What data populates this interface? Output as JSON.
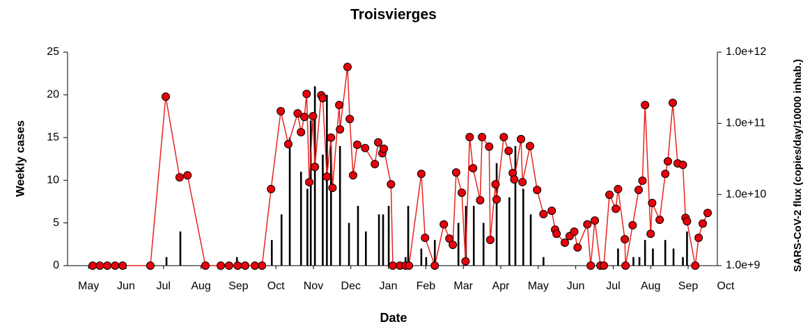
{
  "chart_data": {
    "type": "combo",
    "title": "Troisvierges",
    "x_label": "Date",
    "y_label": "Weekly cases",
    "y2_label": "SARS-CoV-2 flux (copies/day/10000 inhab.)",
    "xlim": [
      -0.56,
      16.78
    ],
    "xticks": [
      {
        "value": 0,
        "label": "May"
      },
      {
        "value": 1,
        "label": "Jun"
      },
      {
        "value": 2,
        "label": "Jul"
      },
      {
        "value": 3,
        "label": "Aug"
      },
      {
        "value": 4,
        "label": "Sep"
      },
      {
        "value": 5,
        "label": "Oct"
      },
      {
        "value": 6,
        "label": "Nov"
      },
      {
        "value": 7,
        "label": "Dec"
      },
      {
        "value": 8,
        "label": "Jan"
      },
      {
        "value": 9,
        "label": "Feb"
      },
      {
        "value": 10,
        "label": "Mar"
      },
      {
        "value": 11,
        "label": "Apr"
      },
      {
        "value": 12,
        "label": "May"
      },
      {
        "value": 13,
        "label": "Jun"
      },
      {
        "value": 14,
        "label": "Jul"
      },
      {
        "value": 15,
        "label": "Aug"
      },
      {
        "value": 16,
        "label": "Sep"
      },
      {
        "value": 17,
        "label": "Oct"
      }
    ],
    "ylim": [
      0,
      25
    ],
    "yticks": [
      0,
      5,
      10,
      15,
      20,
      25
    ],
    "y2lim": [
      1000000000.0,
      1000000000000.0
    ],
    "y2log": true,
    "y2ticks": [
      {
        "value": 1000000000.0,
        "label": "1.0e+9"
      },
      {
        "value": 10000000000.0,
        "label": "1.0e+10"
      },
      {
        "value": 100000000000.0,
        "label": "1.0e+11"
      },
      {
        "value": 1000000000000.0,
        "label": "1.0e+12"
      }
    ],
    "series": [
      {
        "type": "bar",
        "color": "#000000",
        "x": [
          2.08,
          2.45,
          3.96,
          4.89,
          5.15,
          5.37,
          5.67,
          5.84,
          5.93,
          6.04,
          6.25,
          6.36,
          6.47,
          6.71,
          6.95,
          7.19,
          7.4,
          7.75,
          7.86,
          8.01,
          8.46,
          8.53,
          8.88,
          9.01,
          9.24,
          9.87,
          10.07,
          10.28,
          10.54,
          10.89,
          11.23,
          11.39,
          11.6,
          11.8,
          12.14,
          14.13,
          14.54,
          14.7,
          14.85,
          15.06,
          15.39,
          15.61,
          15.86,
          15.97
        ],
        "values": [
          1,
          4,
          1,
          3,
          6,
          15,
          11,
          9,
          17,
          21,
          13,
          20,
          14,
          14,
          5,
          7,
          4,
          6,
          6,
          7,
          1,
          7,
          2,
          1,
          3,
          5,
          7,
          7,
          5,
          12,
          8,
          14,
          9,
          6,
          1,
          2,
          1,
          1,
          3,
          2,
          3,
          2,
          1,
          4
        ]
      },
      {
        "type": "line",
        "axis": "y2",
        "color": "#e8231e",
        "marker_color": "#e8000b",
        "x": [
          0.11,
          0.3,
          0.5,
          0.71,
          0.91,
          1.65,
          2.06,
          2.43,
          2.64,
          3.12,
          3.53,
          3.75,
          3.98,
          4.18,
          4.44,
          4.63,
          4.87,
          5.13,
          5.33,
          5.58,
          5.67,
          5.76,
          5.82,
          5.89,
          5.99,
          6.04,
          6.21,
          6.25,
          6.36,
          6.47,
          6.51,
          6.69,
          6.71,
          6.91,
          6.97,
          7.06,
          7.17,
          7.38,
          7.64,
          7.73,
          7.84,
          7.88,
          8.07,
          8.12,
          8.31,
          8.46,
          8.55,
          8.88,
          8.98,
          9.24,
          9.48,
          9.63,
          9.72,
          9.81,
          9.96,
          10.06,
          10.17,
          10.26,
          10.45,
          10.5,
          10.69,
          10.72,
          10.86,
          10.89,
          11.08,
          11.21,
          11.32,
          11.36,
          11.54,
          11.58,
          11.78,
          11.97,
          12.14,
          12.36,
          12.45,
          12.49,
          12.71,
          12.84,
          12.96,
          13.05,
          13.31,
          13.4,
          13.51,
          13.66,
          13.75,
          13.9,
          14.07,
          14.13,
          14.31,
          14.33,
          14.52,
          14.68,
          14.78,
          14.85,
          15.0,
          15.04,
          15.24,
          15.39,
          15.46,
          15.59,
          15.72,
          15.86,
          15.93,
          15.97,
          16.19,
          16.28,
          16.39,
          16.52
        ],
        "values": [
          1000000000.0,
          1000000000.0,
          1000000000.0,
          1000000000.0,
          1000000000.0,
          1000000000.0,
          237000000000.0,
          17400000000.0,
          18600000000.0,
          1000000000.0,
          1000000000.0,
          1000000000.0,
          1000000000.0,
          1000000000.0,
          1000000000.0,
          1000000000.0,
          11900000000.0,
          148000000000.0,
          51000000000.0,
          138000000000.0,
          75000000000.0,
          123000000000.0,
          259000000000.0,
          14900000000.0,
          126000000000.0,
          24400000000.0,
          248000000000.0,
          226000000000.0,
          17800000000.0,
          63000000000.0,
          12400000000.0,
          181000000000.0,
          82000000000.0,
          620000000000.0,
          115000000000.0,
          18600000000.0,
          50000000000.0,
          45000000000.0,
          26700000000.0,
          54000000000.0,
          38000000000.0,
          44000000000.0,
          13900000000.0,
          1000000000.0,
          1000000000.0,
          1000000000.0,
          1000000000.0,
          19500000000.0,
          2460000000.0,
          1000000000.0,
          3800000000.0,
          2400000000.0,
          1960000000.0,
          20400000000.0,
          10600000000.0,
          1150000000.0,
          64000000000.0,
          23400000000.0,
          8300000000.0,
          64000000000.0,
          47000000000.0,
          2300000000.0,
          13900000000.0,
          8500000000.0,
          64000000000.0,
          41000000000.0,
          20000000000.0,
          16300000000.0,
          60000000000.0,
          14900000000.0,
          48000000000.0,
          11600000000.0,
          5300000000.0,
          5900000000.0,
          3200000000.0,
          2800000000.0,
          2100000000.0,
          2600000000.0,
          3000000000.0,
          1800000000.0,
          3800000000.0,
          1000000000.0,
          4300000000.0,
          1000000000.0,
          1000000000.0,
          9900000000.0,
          6300000000.0,
          11900000000.0,
          2350000000.0,
          1000000000.0,
          3700000000.0,
          11600000000.0,
          15600000000.0,
          181000000000.0,
          2800000000.0,
          7600000000.0,
          4400000000.0,
          19500000000.0,
          29200000000.0,
          194000000000.0,
          27300000000.0,
          26100000000.0,
          4700000000.0,
          4200000000.0,
          1000000000.0,
          2460000000.0,
          3900000000.0,
          5500000000.0
        ]
      }
    ]
  }
}
